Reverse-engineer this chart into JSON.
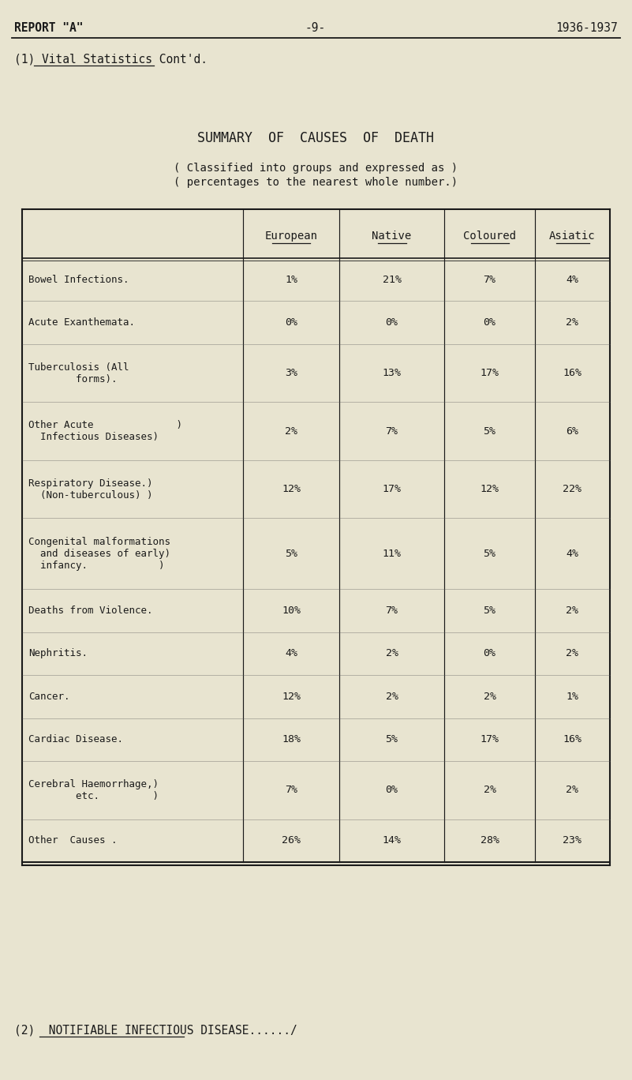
{
  "bg_color": "#e8e4d0",
  "header_left": "REPORT \"A\"",
  "header_center": "-9-",
  "header_right": "1936-1937",
  "section1_prefix": "(1) ",
  "section1_underlined": "Vital Statistics Cont'd.",
  "title": "SUMMARY  OF  CAUSES  OF  DEATH",
  "subtitle1": "( Classified into groups and expressed as )",
  "subtitle2": "( percentages to the nearest whole number.)",
  "col_headers": [
    "European",
    "Native",
    "Coloured",
    "Asiatic"
  ],
  "rows": [
    {
      "label_lines": [
        "Bowel Infections."
      ],
      "values": [
        "1%",
        "21%",
        "7%",
        "4%"
      ]
    },
    {
      "label_lines": [
        "Acute Exanthemata."
      ],
      "values": [
        "0%",
        "0%",
        "0%",
        "2%"
      ]
    },
    {
      "label_lines": [
        "Tuberculosis (All",
        "        forms)."
      ],
      "values": [
        "3%",
        "13%",
        "17%",
        "16%"
      ]
    },
    {
      "label_lines": [
        "Other Acute              )",
        "  Infectious Diseases)"
      ],
      "values": [
        "2%",
        "7%",
        "5%",
        "6%"
      ]
    },
    {
      "label_lines": [
        "Respiratory Disease.)",
        "  (Non-tuberculous) )"
      ],
      "values": [
        "12%",
        "17%",
        "12%",
        "22%"
      ]
    },
    {
      "label_lines": [
        "Congenital malformations",
        "  and diseases of early)",
        "  infancy.            )"
      ],
      "values": [
        "5%",
        "11%",
        "5%",
        "4%"
      ]
    },
    {
      "label_lines": [
        "Deaths from Violence."
      ],
      "values": [
        "10%",
        "7%",
        "5%",
        "2%"
      ]
    },
    {
      "label_lines": [
        "Nephritis."
      ],
      "values": [
        "4%",
        "2%",
        "0%",
        "2%"
      ]
    },
    {
      "label_lines": [
        "Cancer."
      ],
      "values": [
        "12%",
        "2%",
        "2%",
        "1%"
      ]
    },
    {
      "label_lines": [
        "Cardiac Disease."
      ],
      "values": [
        "18%",
        "5%",
        "17%",
        "16%"
      ]
    },
    {
      "label_lines": [
        "Cerebral Haemorrhage,)",
        "        etc.         )"
      ],
      "values": [
        "7%",
        "0%",
        "2%",
        "2%"
      ]
    },
    {
      "label_lines": [
        "Other  Causes ."
      ],
      "values": [
        "26%",
        "14%",
        "28%",
        "23%"
      ]
    }
  ],
  "section2_prefix": "(2)  ",
  "section2_underlined": "NOTIFIABLE INFECTIOUS DISEASE",
  "section2_suffix": "....../"
}
